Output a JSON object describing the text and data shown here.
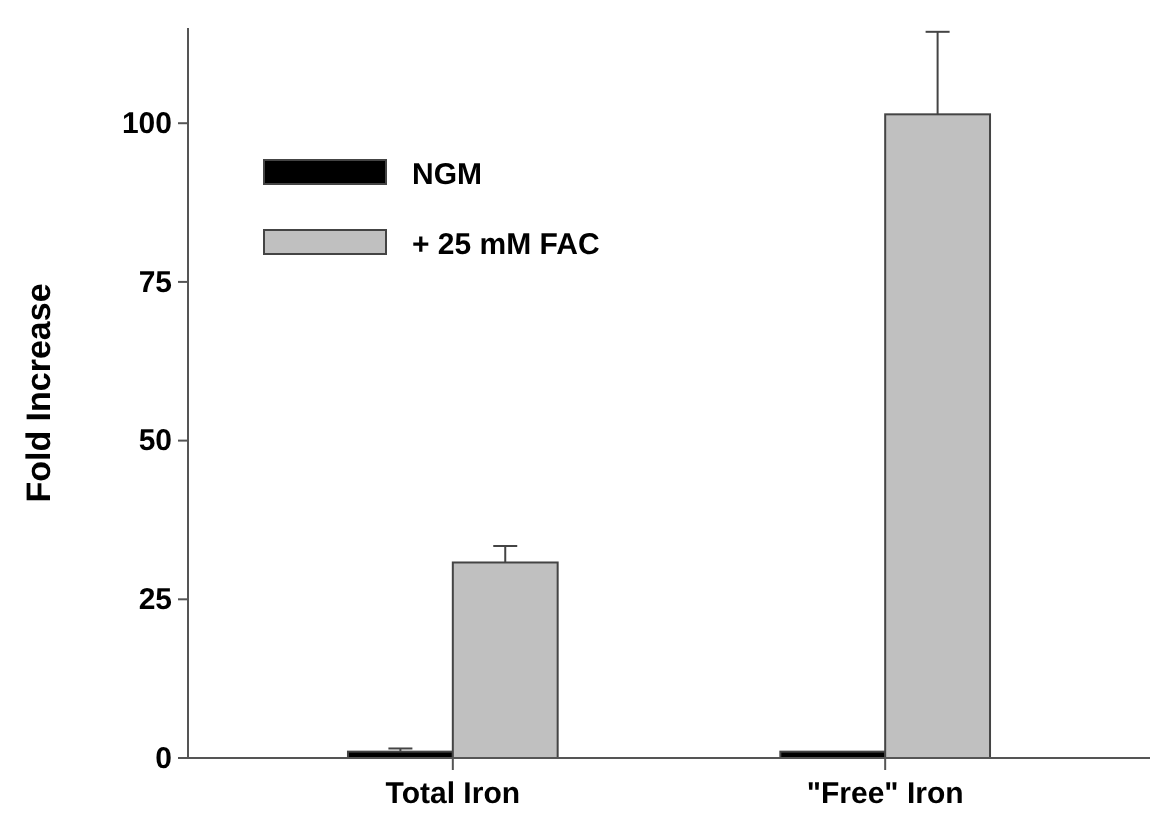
{
  "chart_data": {
    "type": "bar",
    "ylabel": "Fold Increase",
    "categories": [
      "Total Iron",
      "\"Free\" Iron"
    ],
    "series": [
      {
        "name": "NGM",
        "color": "#000000",
        "values": [
          1,
          1
        ],
        "errors": [
          [
            1,
            1.5
          ],
          null
        ]
      },
      {
        "name": "+ 25 mM FAC",
        "color": "#c0c0c0",
        "values": [
          30.8,
          101.4
        ],
        "errors": [
          [
            30.8,
            33.4
          ],
          [
            101.4,
            114.4
          ]
        ]
      }
    ],
    "ylim": [
      0,
      115
    ],
    "yticks": [
      0,
      25,
      50,
      75,
      100
    ],
    "legend": "top left",
    "grid": false
  }
}
